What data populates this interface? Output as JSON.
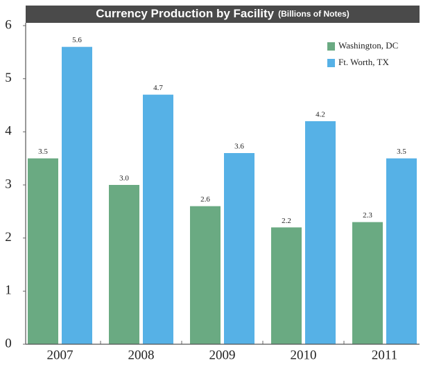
{
  "chart_data": {
    "type": "bar",
    "title": "Currency Production by Facility",
    "subtitle": "(Billions of Notes)",
    "categories": [
      "2007",
      "2008",
      "2009",
      "2010",
      "2011"
    ],
    "series": [
      {
        "name": "Washington, DC",
        "color": "#6aaa82",
        "values": [
          3.5,
          3.0,
          2.6,
          2.2,
          2.3
        ],
        "value_labels": [
          "3.5",
          "3.0",
          "2.6",
          "2.2",
          "2.3"
        ]
      },
      {
        "name": "Ft. Worth, TX",
        "color": "#56b1e6",
        "values": [
          5.6,
          4.7,
          3.6,
          4.2,
          3.5
        ],
        "value_labels": [
          "5.6",
          "4.7",
          "3.6",
          "4.2",
          "3.5"
        ]
      }
    ],
    "ylim": [
      0,
      6
    ],
    "yticks": [
      0,
      1,
      2,
      3,
      4,
      5,
      6
    ],
    "legend": "upper right"
  }
}
